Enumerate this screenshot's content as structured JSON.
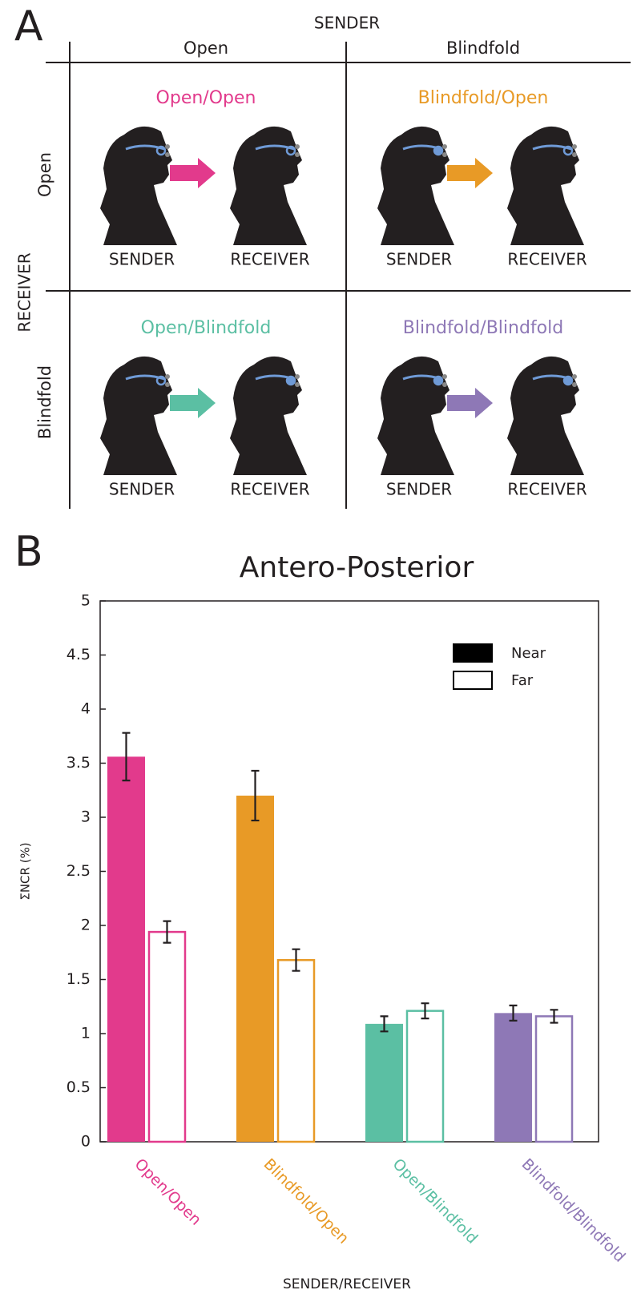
{
  "panel_a": {
    "label": "A",
    "column_header": "SENDER",
    "columns": [
      "Open",
      "Blindfold"
    ],
    "row_header": "RECEIVER",
    "rows": [
      "Open",
      "Blindfold"
    ],
    "cells": [
      {
        "title": "Open/Open",
        "color": "#e23a8c",
        "sender": "SENDER",
        "receiver": "RECEIVER"
      },
      {
        "title": "Blindfold/Open",
        "color": "#e89a26",
        "sender": "SENDER",
        "receiver": "RECEIVER"
      },
      {
        "title": "Open/Blindfold",
        "color": "#5bbfa3",
        "sender": "SENDER",
        "receiver": "RECEIVER"
      },
      {
        "title": "Blindfold/Blindfold",
        "color": "#8e78b6",
        "sender": "SENDER",
        "receiver": "RECEIVER"
      }
    ]
  },
  "chart_data": {
    "label": "B",
    "type": "bar",
    "title": "Antero-Posterior",
    "ylabel": "ΣNCR (%)",
    "xlabel": "SENDER/RECEIVER",
    "categories": [
      "Open/Open",
      "Blindfold/Open",
      "Open/Blindfold",
      "Blindfold/Blindfold"
    ],
    "category_colors": [
      "#e23a8c",
      "#e89a26",
      "#5bbfa3",
      "#8e78b6"
    ],
    "series": [
      {
        "name": "Near",
        "style": "filled",
        "color": "#000000",
        "values": [
          3.56,
          3.2,
          1.09,
          1.19
        ],
        "errors": [
          0.22,
          0.23,
          0.07,
          0.07
        ]
      },
      {
        "name": "Far",
        "style": "outline",
        "color": "#000000",
        "values": [
          1.94,
          1.68,
          1.21,
          1.16
        ],
        "errors": [
          0.1,
          0.1,
          0.07,
          0.06
        ]
      }
    ],
    "ylim": [
      0,
      5
    ],
    "yticks": [
      0,
      0.5,
      1,
      1.5,
      2,
      2.5,
      3,
      3.5,
      4,
      4.5,
      5
    ],
    "legend": "upper-right"
  }
}
